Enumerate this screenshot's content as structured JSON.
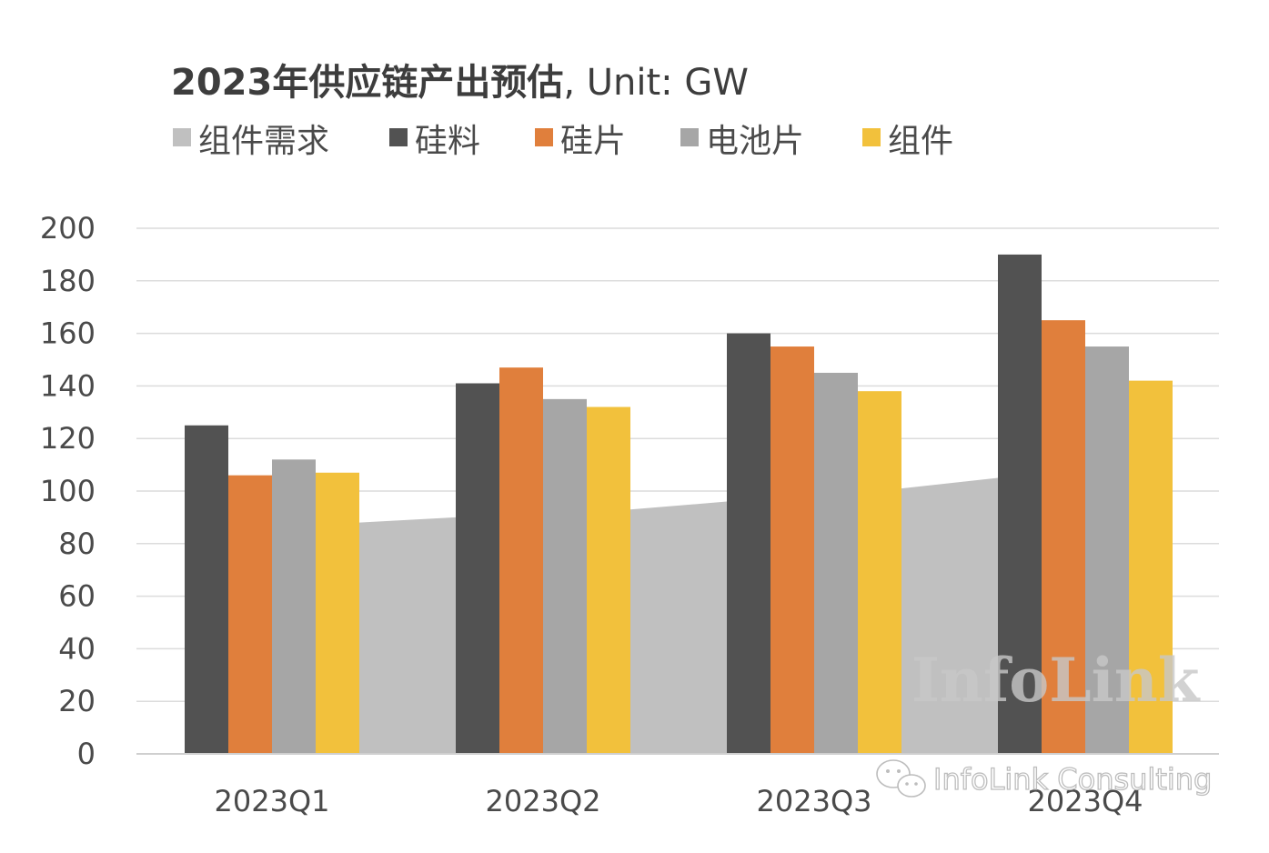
{
  "chart_data": {
    "type": "bar",
    "title": "2023年供应链产出预估",
    "unit_label": ", Unit: GW",
    "categories": [
      "2023Q1",
      "2023Q2",
      "2023Q3",
      "2023Q4"
    ],
    "area_series": {
      "name": "组件需求",
      "color": "#c0c0c0",
      "values": [
        88,
        90,
        93,
        96,
        101,
        105
      ]
    },
    "series": [
      {
        "name": "硅料",
        "color": "#525252",
        "values": [
          125,
          141,
          160,
          190
        ]
      },
      {
        "name": "硅片",
        "color": "#e07f3c",
        "values": [
          106,
          147,
          155,
          165
        ]
      },
      {
        "name": "电池片",
        "color": "#a6a6a6",
        "values": [
          112,
          135,
          145,
          155
        ]
      },
      {
        "name": "组件",
        "color": "#f2c13c",
        "values": [
          107,
          132,
          138,
          142
        ]
      }
    ],
    "ylim": [
      0,
      200
    ],
    "yticks": [
      0,
      20,
      40,
      60,
      80,
      100,
      120,
      140,
      160,
      180,
      200
    ],
    "grid": true,
    "legend_position": "top"
  },
  "legend": [
    {
      "label": "组件需求",
      "color": "#c0c0c0"
    },
    {
      "label": "硅料",
      "color": "#525252"
    },
    {
      "label": "硅片",
      "color": "#e07f3c"
    },
    {
      "label": "电池片",
      "color": "#a6a6a6"
    },
    {
      "label": "组件",
      "color": "#f2c13c"
    }
  ],
  "watermark": {
    "brand": "InfoLink",
    "credit": "InfoLink Consulting"
  }
}
